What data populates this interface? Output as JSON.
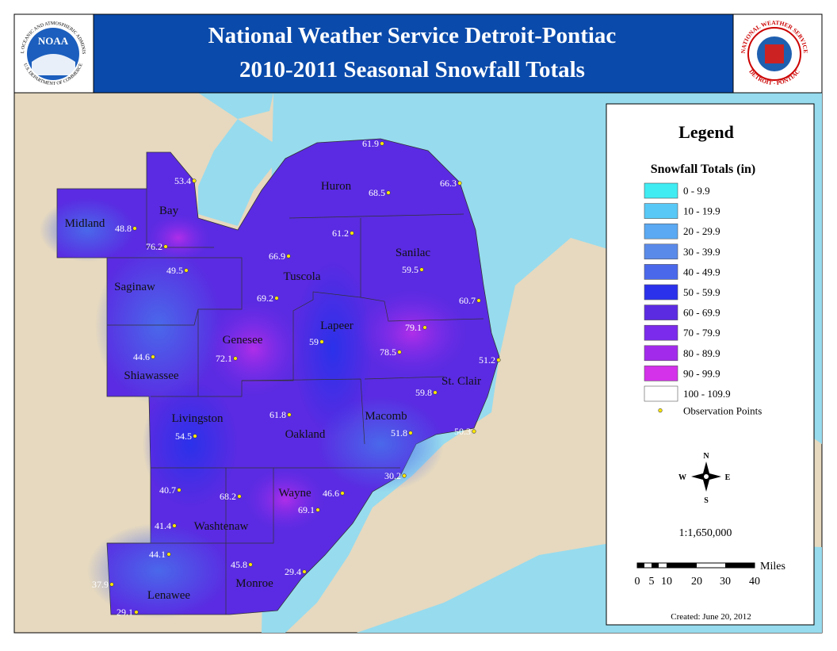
{
  "header": {
    "title": "National Weather Service Detroit-Pontiac",
    "subtitle": "2010-2011 Seasonal Snowfall Totals",
    "left_logo": {
      "name": "NOAA",
      "ring_top": "NATIONAL OCEANIC AND ATMOSPHERIC ADMINISTRATION",
      "ring_bottom": "U.S. DEPARTMENT OF COMMERCE"
    },
    "right_logo": {
      "ring_top": "NATIONAL WEATHER SERVICE",
      "ring_bottom": "DETROIT - PONTIAC"
    }
  },
  "counties": [
    "Midland",
    "Bay",
    "Saginaw",
    "Huron",
    "Tuscola",
    "Sanilac",
    "Genesee",
    "Lapeer",
    "Shiawassee",
    "Livingston",
    "Oakland",
    "Macomb",
    "St. Clair",
    "Wayne",
    "Washtenaw",
    "Lenawee",
    "Monroe"
  ],
  "observations": [
    61.9,
    53.4,
    68.5,
    66.3,
    48.8,
    76.2,
    61.2,
    66.9,
    59.5,
    49.5,
    69.2,
    60.7,
    79.1,
    44.6,
    59,
    78.5,
    51.2,
    72.1,
    59.8,
    61.8,
    54.5,
    51.8,
    50.3,
    30.2,
    40.7,
    68.2,
    46.6,
    69.1,
    41.4,
    44.1,
    45.8,
    29.4,
    37.9,
    29.1
  ],
  "legend": {
    "title": "Legend",
    "subtitle": "Snowfall Totals (in)",
    "items": [
      {
        "label": "0 - 9.9",
        "color": "#3fecf2"
      },
      {
        "label": "10 - 19.9",
        "color": "#58c9f6"
      },
      {
        "label": "20 - 29.9",
        "color": "#5aa9f2"
      },
      {
        "label": "30 - 39.9",
        "color": "#5a8ae9"
      },
      {
        "label": "40 - 49.9",
        "color": "#4a68ea"
      },
      {
        "label": "50 - 59.9",
        "color": "#2b31ea"
      },
      {
        "label": "60 - 69.9",
        "color": "#5b2be2"
      },
      {
        "label": "70 - 79.9",
        "color": "#7b2beb"
      },
      {
        "label": "80 - 89.9",
        "color": "#a22beb"
      },
      {
        "label": "90 - 99.9",
        "color": "#d331ea"
      },
      {
        "label": "100 - 109.9",
        "color": "#ffffff"
      }
    ],
    "points_label": "Observation Points",
    "compass": {
      "n": "N",
      "s": "S",
      "e": "E",
      "w": "W"
    },
    "scale": "1:1,650,000",
    "scale_unit": "Miles",
    "scale_ticks": [
      "0",
      "5",
      "10",
      "20",
      "30",
      "40"
    ],
    "created": "Created: June 20, 2012"
  }
}
